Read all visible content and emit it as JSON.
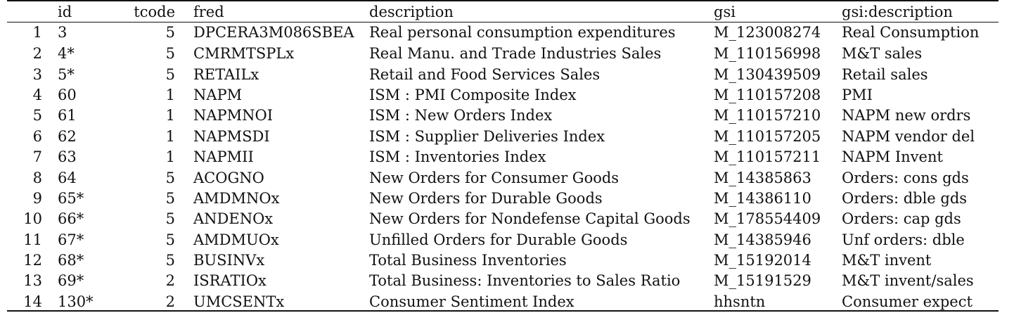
{
  "table": {
    "columns": [
      "",
      "id",
      "tcode",
      "fred",
      "description",
      "gsi",
      "gsi:description"
    ],
    "rows": [
      [
        "1",
        "3",
        "5",
        "DPCERA3M086SBEA",
        "Real personal consumption expenditures",
        "M_123008274",
        "Real Consumption"
      ],
      [
        "2",
        "4*",
        "5",
        "CMRMTSPLx",
        "Real Manu. and Trade Industries Sales",
        "M_110156998",
        "M&T sales"
      ],
      [
        "3",
        "5*",
        "5",
        "RETAILx",
        "Retail and Food Services Sales",
        "M_130439509",
        "Retail sales"
      ],
      [
        "4",
        "60",
        "1",
        "NAPM",
        "ISM : PMI Composite Index",
        "M_110157208",
        "PMI"
      ],
      [
        "5",
        "61",
        "1",
        "NAPMNOI",
        "ISM : New Orders Index",
        "M_110157210",
        "NAPM new ordrs"
      ],
      [
        "6",
        "62",
        "1",
        "NAPMSDI",
        "ISM : Supplier Deliveries Index",
        "M_110157205",
        "NAPM vendor del"
      ],
      [
        "7",
        "63",
        "1",
        "NAPMII",
        "ISM : Inventories Index",
        "M_110157211",
        "NAPM Invent"
      ],
      [
        "8",
        "64",
        "5",
        "ACOGNO",
        "New Orders for Consumer Goods",
        "M_14385863",
        "Orders: cons gds"
      ],
      [
        "9",
        "65*",
        "5",
        "AMDMNOx",
        "New Orders for Durable Goods",
        "M_14386110",
        "Orders: dble gds"
      ],
      [
        "10",
        "66*",
        "5",
        "ANDENOx",
        "New Orders for Nondefense Capital Goods",
        "M_178554409",
        "Orders: cap gds"
      ],
      [
        "11",
        "67*",
        "5",
        "AMDMUOx",
        "Unfilled Orders for Durable Goods",
        "M_14385946",
        "Unf orders: dble"
      ],
      [
        "12",
        "68*",
        "5",
        "BUSINVx",
        "Total Business Inventories",
        "M_15192014",
        "M&T invent"
      ],
      [
        "13",
        "69*",
        "2",
        "ISRATIOx",
        "Total Business: Inventories to Sales Ratio",
        "M_15191529",
        "M&T invent/sales"
      ],
      [
        "14",
        "130*",
        "2",
        "UMCSENTx",
        "Consumer Sentiment Index",
        "hhsntn",
        "Consumer expect"
      ]
    ]
  }
}
